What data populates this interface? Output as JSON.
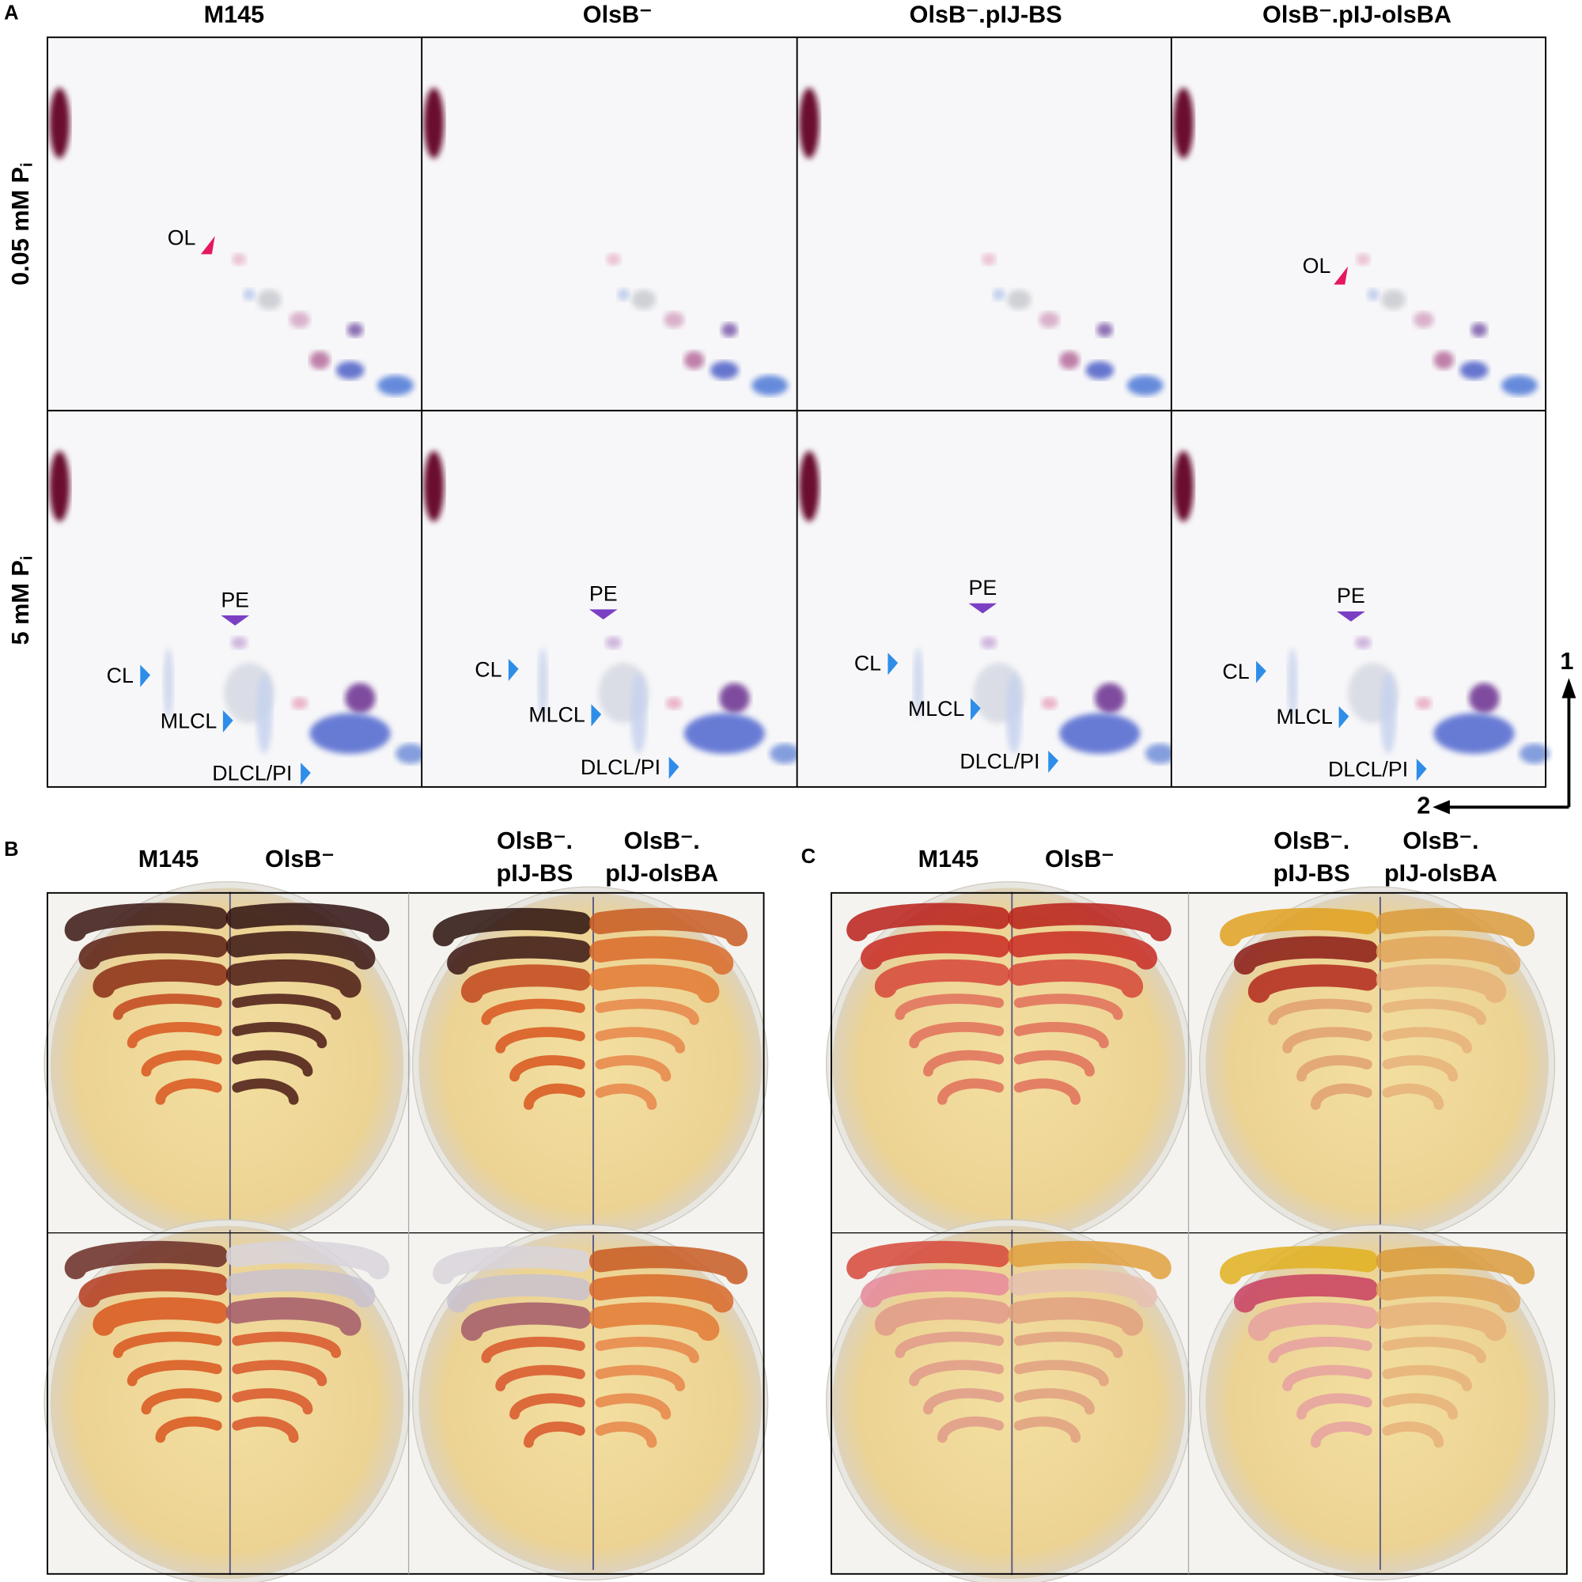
{
  "panel_a": {
    "label": "A",
    "columns": [
      "M145",
      "OlsB⁻",
      "OlsB⁻.pIJ-BS",
      "OlsB⁻.pIJ-olsBA"
    ],
    "rows": [
      {
        "text": "0.05 mM P",
        "subscript": "i"
      },
      {
        "text": "5 mM P",
        "subscript": "i"
      }
    ],
    "top_row_labels": [
      [
        "OL"
      ],
      [],
      [],
      [
        "OL"
      ]
    ],
    "bottom_row_labels": [
      [
        "PE",
        "CL",
        "MLCL",
        "DLCL/PI"
      ],
      [
        "PE",
        "CL",
        "MLCL",
        "DLCL/PI"
      ],
      [
        "PE",
        "CL",
        "MLCL",
        "DLCL/PI"
      ],
      [
        "PE",
        "CL",
        "MLCL",
        "DLCL/PI"
      ]
    ],
    "axis_labels": [
      "1",
      "2"
    ]
  },
  "panel_b": {
    "label": "B",
    "headers": [
      [
        "M145"
      ],
      [
        "OlsB⁻"
      ],
      [
        "OlsB⁻.",
        "pIJ-BS"
      ],
      [
        "OlsB⁻.",
        "pIJ-olsBA"
      ]
    ]
  },
  "panel_c": {
    "label": "C",
    "headers": [
      [
        "M145"
      ],
      [
        "OlsB⁻"
      ],
      [
        "OlsB⁻.",
        "pIJ-BS"
      ],
      [
        "OlsB⁻.",
        "pIJ-olsBA"
      ]
    ]
  }
}
